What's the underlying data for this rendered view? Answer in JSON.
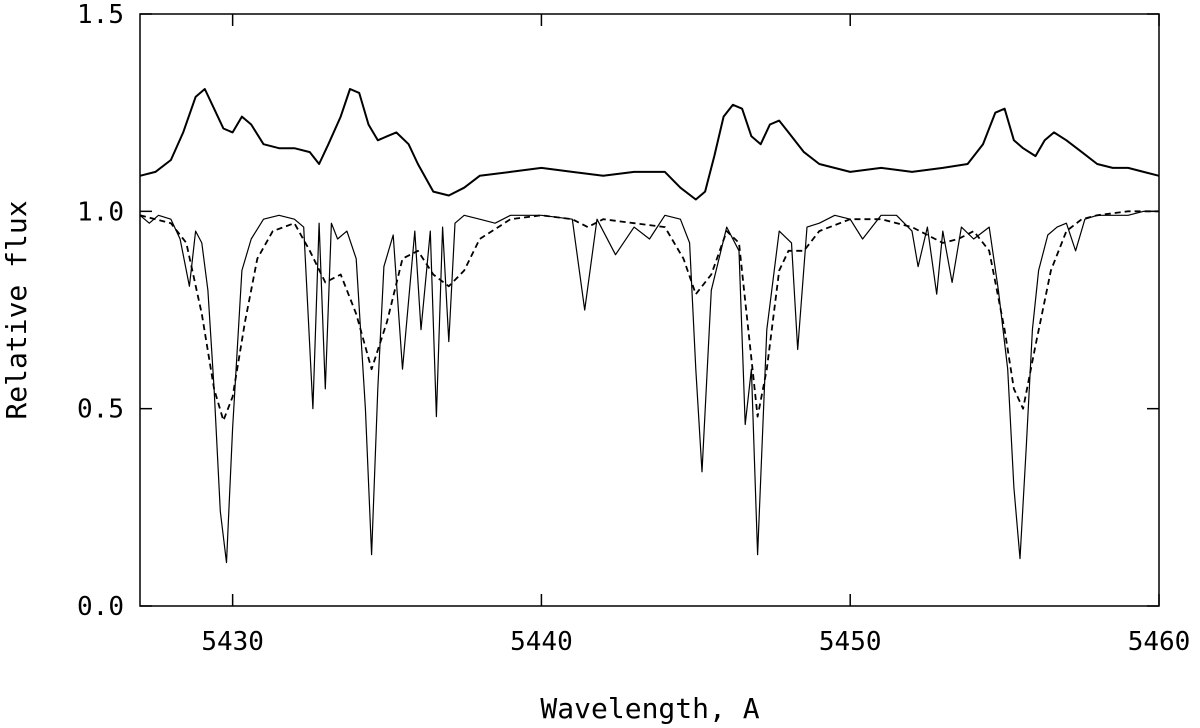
{
  "chart_data": {
    "type": "line",
    "title": "",
    "xlabel": "Wavelength, A",
    "ylabel": "Relative flux",
    "xlim": [
      5427,
      5460
    ],
    "ylim": [
      0.0,
      1.5
    ],
    "xticks": [
      5430,
      5440,
      5450,
      5460
    ],
    "yticks": [
      0.0,
      0.5,
      1.0,
      1.5
    ],
    "xtick_labels": [
      "5430",
      "5440",
      "5450",
      "5460"
    ],
    "ytick_labels": [
      "0.0",
      "0.5",
      "1.0",
      "1.5"
    ],
    "grid": false,
    "legend": "none",
    "series": [
      {
        "style": "solid-thick",
        "color": "#000000",
        "x": [
          5427.0,
          5427.5,
          5428.0,
          5428.4,
          5428.8,
          5429.1,
          5429.4,
          5429.7,
          5430.0,
          5430.3,
          5430.6,
          5431.0,
          5431.5,
          5432.0,
          5432.5,
          5432.8,
          5433.1,
          5433.5,
          5433.8,
          5434.1,
          5434.4,
          5434.7,
          5435.0,
          5435.3,
          5435.7,
          5436.0,
          5436.5,
          5437.0,
          5437.5,
          5438.0,
          5439.0,
          5440.0,
          5441.0,
          5442.0,
          5443.0,
          5444.0,
          5444.5,
          5445.0,
          5445.3,
          5445.6,
          5445.9,
          5446.2,
          5446.5,
          5446.8,
          5447.1,
          5447.4,
          5447.7,
          5448.0,
          5448.5,
          5449.0,
          5450.0,
          5451.0,
          5452.0,
          5453.0,
          5453.8,
          5454.3,
          5454.7,
          5455.0,
          5455.3,
          5455.6,
          5456.0,
          5456.3,
          5456.6,
          5457.0,
          5457.5,
          5458.0,
          5458.5,
          5459.0,
          5459.5,
          5460.0
        ],
        "y": [
          1.09,
          1.1,
          1.13,
          1.2,
          1.29,
          1.31,
          1.26,
          1.21,
          1.2,
          1.24,
          1.22,
          1.17,
          1.16,
          1.16,
          1.15,
          1.12,
          1.17,
          1.24,
          1.31,
          1.3,
          1.22,
          1.18,
          1.19,
          1.2,
          1.17,
          1.12,
          1.05,
          1.04,
          1.06,
          1.09,
          1.1,
          1.11,
          1.1,
          1.09,
          1.1,
          1.1,
          1.06,
          1.03,
          1.05,
          1.14,
          1.24,
          1.27,
          1.26,
          1.19,
          1.17,
          1.22,
          1.23,
          1.2,
          1.15,
          1.12,
          1.1,
          1.11,
          1.1,
          1.11,
          1.12,
          1.17,
          1.25,
          1.26,
          1.18,
          1.16,
          1.14,
          1.18,
          1.2,
          1.18,
          1.15,
          1.12,
          1.11,
          1.11,
          1.1,
          1.09
        ]
      },
      {
        "style": "solid-thin",
        "color": "#000000",
        "x": [
          5427.0,
          5427.3,
          5427.6,
          5428.0,
          5428.3,
          5428.6,
          5428.8,
          5429.0,
          5429.2,
          5429.4,
          5429.6,
          5429.8,
          5430.0,
          5430.3,
          5430.6,
          5431.0,
          5431.5,
          5432.0,
          5432.3,
          5432.6,
          5432.8,
          5433.0,
          5433.2,
          5433.4,
          5433.7,
          5434.0,
          5434.3,
          5434.5,
          5434.7,
          5434.9,
          5435.2,
          5435.5,
          5435.9,
          5436.1,
          5436.4,
          5436.6,
          5436.8,
          5437.0,
          5437.2,
          5437.5,
          5438.0,
          5438.5,
          5439.0,
          5440.0,
          5441.0,
          5441.4,
          5441.8,
          5442.4,
          5443.0,
          5443.5,
          5444.0,
          5444.5,
          5444.8,
          5445.0,
          5445.2,
          5445.5,
          5446.0,
          5446.4,
          5446.6,
          5446.8,
          5447.0,
          5447.3,
          5447.7,
          5448.1,
          5448.3,
          5448.6,
          5449.0,
          5449.5,
          5450.0,
          5450.4,
          5451.0,
          5451.5,
          5452.0,
          5452.2,
          5452.5,
          5452.8,
          5453.0,
          5453.3,
          5453.6,
          5454.0,
          5454.5,
          5454.8,
          5455.1,
          5455.3,
          5455.5,
          5455.7,
          5455.9,
          5456.1,
          5456.4,
          5456.7,
          5457.0,
          5457.3,
          5457.6,
          5458.0,
          5458.5,
          5459.0,
          5459.5,
          5460.0
        ],
        "y": [
          0.99,
          0.97,
          0.99,
          0.98,
          0.93,
          0.81,
          0.95,
          0.92,
          0.8,
          0.55,
          0.24,
          0.11,
          0.45,
          0.85,
          0.93,
          0.98,
          0.99,
          0.98,
          0.96,
          0.5,
          0.97,
          0.55,
          0.97,
          0.93,
          0.95,
          0.88,
          0.5,
          0.13,
          0.55,
          0.86,
          0.94,
          0.6,
          0.95,
          0.7,
          0.95,
          0.48,
          0.96,
          0.67,
          0.97,
          0.99,
          0.98,
          0.97,
          0.99,
          0.99,
          0.98,
          0.75,
          0.98,
          0.89,
          0.96,
          0.93,
          0.99,
          0.98,
          0.92,
          0.6,
          0.34,
          0.8,
          0.96,
          0.9,
          0.46,
          0.6,
          0.13,
          0.7,
          0.95,
          0.92,
          0.65,
          0.96,
          0.97,
          0.99,
          0.98,
          0.93,
          0.99,
          0.99,
          0.95,
          0.86,
          0.96,
          0.79,
          0.95,
          0.82,
          0.96,
          0.93,
          0.96,
          0.8,
          0.6,
          0.3,
          0.12,
          0.4,
          0.7,
          0.85,
          0.94,
          0.96,
          0.97,
          0.9,
          0.98,
          0.99,
          0.99,
          0.99,
          1.0,
          1.0
        ]
      },
      {
        "style": "dashed",
        "color": "#000000",
        "x": [
          5427.0,
          5427.5,
          5428.0,
          5428.5,
          5429.0,
          5429.4,
          5429.7,
          5430.0,
          5430.4,
          5430.8,
          5431.3,
          5432.0,
          5432.5,
          5433.0,
          5433.5,
          5434.0,
          5434.5,
          5435.0,
          5435.5,
          5436.0,
          5436.5,
          5437.0,
          5437.5,
          5438.0,
          5439.0,
          5440.0,
          5441.0,
          5441.5,
          5442.0,
          5443.0,
          5444.0,
          5444.6,
          5445.0,
          5445.5,
          5446.0,
          5446.4,
          5446.7,
          5447.0,
          5447.3,
          5447.7,
          5448.0,
          5448.5,
          5449.0,
          5450.0,
          5451.0,
          5452.0,
          5452.5,
          5453.0,
          5453.5,
          5454.0,
          5454.5,
          5455.0,
          5455.3,
          5455.6,
          5456.0,
          5456.5,
          5457.0,
          5457.5,
          5458.0,
          5459.0,
          5460.0
        ],
        "y": [
          0.99,
          0.98,
          0.97,
          0.92,
          0.74,
          0.55,
          0.47,
          0.53,
          0.72,
          0.88,
          0.95,
          0.97,
          0.9,
          0.82,
          0.84,
          0.74,
          0.6,
          0.72,
          0.88,
          0.9,
          0.84,
          0.81,
          0.85,
          0.93,
          0.98,
          0.99,
          0.98,
          0.96,
          0.98,
          0.97,
          0.96,
          0.88,
          0.79,
          0.84,
          0.95,
          0.92,
          0.7,
          0.48,
          0.6,
          0.85,
          0.9,
          0.9,
          0.95,
          0.98,
          0.98,
          0.96,
          0.94,
          0.92,
          0.93,
          0.95,
          0.9,
          0.7,
          0.55,
          0.5,
          0.66,
          0.85,
          0.95,
          0.98,
          0.99,
          1.0,
          1.0
        ]
      }
    ]
  }
}
